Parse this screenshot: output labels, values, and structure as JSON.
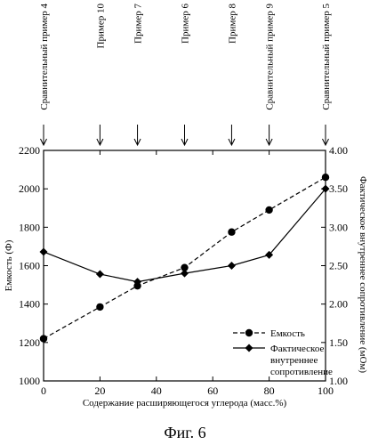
{
  "chart_data": {
    "type": "line",
    "x": [
      0,
      20,
      33.3,
      50,
      66.7,
      80,
      100
    ],
    "series": [
      {
        "name": "Емкость",
        "axis": "left",
        "marker": "circle",
        "line": "dashed",
        "values": [
          1220,
          1385,
          1495,
          1590,
          1775,
          1890,
          2060
        ]
      },
      {
        "name": "Фактическое внутреннее сопротивление",
        "name_lines": [
          "Фактическое",
          "внутреннее",
          "сопротивление"
        ],
        "axis": "right",
        "marker": "diamond",
        "line": "solid",
        "values": [
          2.68,
          2.39,
          2.29,
          2.4,
          2.5,
          2.64,
          3.5
        ]
      }
    ],
    "xlabel": "Содержание расширяющегося углерода (масс.%)",
    "ylabel": "Емкость (Ф)",
    "y2label": "Фактическое внутреннее сопротивление (мОм)",
    "xlim": [
      0,
      100
    ],
    "ylim": [
      1000,
      2200
    ],
    "y2lim": [
      1.0,
      4.0
    ],
    "x_ticks": [
      "0",
      "20",
      "40",
      "60",
      "80",
      "100"
    ],
    "y_ticks": [
      "1000",
      "1200",
      "1400",
      "1600",
      "1800",
      "2000",
      "2200"
    ],
    "y2_ticks": [
      "1.00",
      "1.50",
      "2.00",
      "2.50",
      "3.00",
      "3.50",
      "4.00"
    ],
    "annotations": [
      {
        "x": 0,
        "text": "Сравнительный пример 4"
      },
      {
        "x": 20,
        "text": "Пример 10"
      },
      {
        "x": 33.3,
        "text": "Пример 7"
      },
      {
        "x": 50,
        "text": "Пример 6"
      },
      {
        "x": 66.7,
        "text": "Пример 8"
      },
      {
        "x": 80,
        "text": "Сравнительный пример 9"
      },
      {
        "x": 100,
        "text": "Сравнительный пример 5"
      }
    ],
    "grid": false,
    "legend_position": "bottom-right"
  },
  "caption": "Фиг. 6"
}
